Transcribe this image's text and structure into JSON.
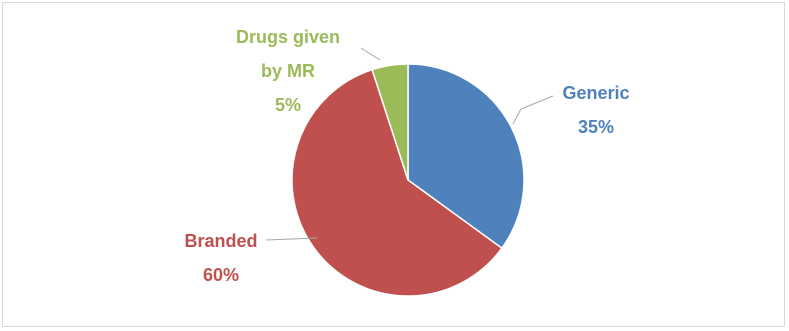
{
  "chart_data": {
    "type": "pie",
    "title": "",
    "slices": [
      {
        "label_lines": [
          "Generic"
        ],
        "percent_label": "35%",
        "value": 35,
        "color": "#4f81bd"
      },
      {
        "label_lines": [
          "Branded"
        ],
        "percent_label": "60%",
        "value": 60,
        "color": "#c0504d"
      },
      {
        "label_lines": [
          "Drugs given",
          "by MR"
        ],
        "percent_label": "5%",
        "value": 5,
        "color": "#9bbb59"
      }
    ],
    "start_angle_deg": 0,
    "direction": "clockwise",
    "legend": "none",
    "data_labels": "outside with leader lines"
  }
}
